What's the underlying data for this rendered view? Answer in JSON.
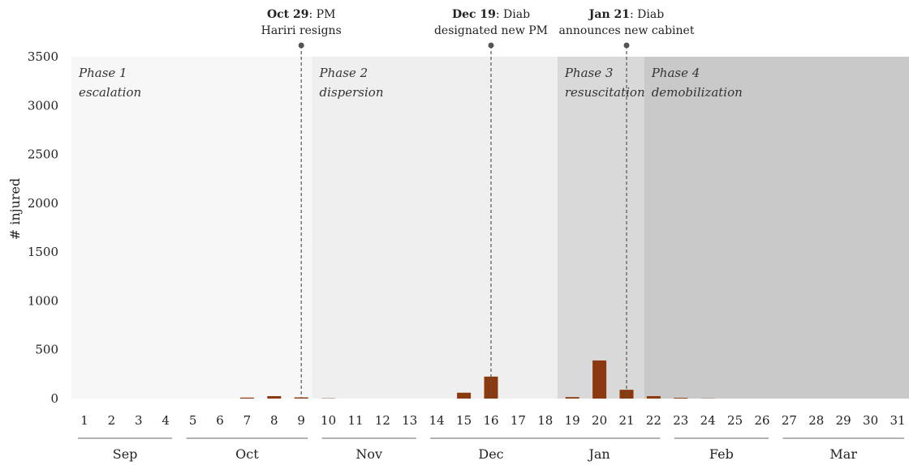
{
  "chart_data": {
    "type": "bar",
    "ylabel": "# injured",
    "ylim": [
      0,
      3500
    ],
    "yticks": [
      0,
      500,
      1000,
      1500,
      2000,
      2500,
      3000,
      3500
    ],
    "categories": [
      "1",
      "2",
      "3",
      "4",
      "5",
      "6",
      "7",
      "8",
      "9",
      "10",
      "11",
      "12",
      "13",
      "14",
      "15",
      "16",
      "17",
      "18",
      "19",
      "20",
      "21",
      "22",
      "23",
      "24",
      "25",
      "26",
      "27",
      "28",
      "29",
      "30",
      "31"
    ],
    "values": [
      0,
      0,
      0,
      0,
      0,
      0,
      10,
      25,
      12,
      3,
      0,
      0,
      0,
      0,
      60,
      225,
      0,
      0,
      15,
      390,
      90,
      25,
      8,
      2,
      0,
      0,
      0,
      0,
      0,
      0,
      0
    ],
    "bar_color": "#8b3a0f",
    "months": [
      {
        "label": "Sep",
        "from": 1,
        "to": 4
      },
      {
        "label": "Oct",
        "from": 5,
        "to": 9
      },
      {
        "label": "Nov",
        "from": 10,
        "to": 13
      },
      {
        "label": "Dec",
        "from": 14,
        "to": 18
      },
      {
        "label": "Jan",
        "from": 18,
        "to": 22
      },
      {
        "label": "Feb",
        "from": 23,
        "to": 26
      },
      {
        "label": "Mar",
        "from": 27,
        "to": 31
      }
    ],
    "phases": [
      {
        "line1": "Phase 1",
        "line2": "escalation",
        "from": 0.5,
        "to": 9.4,
        "color": "#f7f7f7"
      },
      {
        "line1": "Phase 2",
        "line2": "dispersion",
        "from": 9.4,
        "to": 18.45,
        "color": "#efefef"
      },
      {
        "line1": "Phase 3",
        "line2": "resuscitation",
        "from": 18.45,
        "to": 21.65,
        "color": "#d9d9d9"
      },
      {
        "line1": "Phase 4",
        "line2": "demobilization",
        "from": 21.65,
        "to": 31.5,
        "color": "#c9c9c9"
      }
    ],
    "annotations": [
      {
        "bold": "Oct 29",
        "rest": ": PM",
        "line2": "Hariri resigns",
        "x": 9.0
      },
      {
        "bold": "Dec 19",
        "rest": ": Diab",
        "line2": "designated new PM",
        "x": 16.0
      },
      {
        "bold": "Jan 21",
        "rest": ": Diab",
        "line2": "announces new cabinet",
        "x": 21.0
      }
    ],
    "grid": false,
    "legend": "none"
  }
}
